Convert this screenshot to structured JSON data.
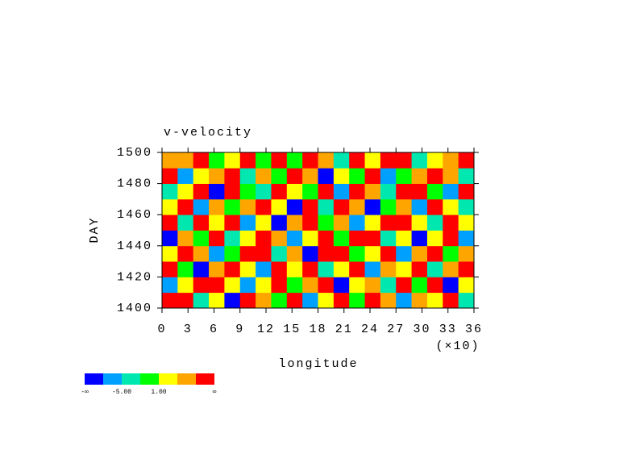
{
  "chart_data": {
    "type": "heatmap",
    "title": "v-velocity",
    "x_label": "longitude",
    "x_multiplier": "(×10)",
    "y_label": "DAY",
    "xlim": [
      0,
      360
    ],
    "xticks": [
      0,
      {
        "value": 30,
        "label": "3"
      },
      {
        "value": 60,
        "label": "6"
      },
      {
        "value": 90,
        "label": "9"
      },
      {
        "value": 120,
        "label": "12"
      },
      {
        "value": 150,
        "label": "15"
      },
      {
        "value": 180,
        "label": "18"
      },
      {
        "value": 210,
        "label": "21"
      },
      {
        "value": 240,
        "label": "24"
      },
      {
        "value": 270,
        "label": "27"
      },
      {
        "value": 300,
        "label": "30"
      },
      {
        "value": 330,
        "label": "33"
      },
      {
        "value": 360,
        "label": "36"
      }
    ],
    "ylim": [
      1400,
      1500
    ],
    "yticks": [
      1400,
      1420,
      1440,
      1460,
      1480,
      1500
    ],
    "x": [
      9,
      27,
      45,
      63,
      81,
      99,
      117,
      135,
      153,
      171,
      189,
      207,
      225,
      243,
      261,
      279,
      297,
      315,
      333,
      351
    ],
    "y": [
      1405,
      1415,
      1425,
      1435,
      1445,
      1455,
      1465,
      1475,
      1485,
      1495
    ],
    "z": [
      [
        7,
        9,
        -3,
        2,
        -9,
        8,
        5,
        0,
        10,
        -6,
        3,
        8,
        -2,
        9,
        4,
        -7,
        6,
        1,
        8,
        -4
      ],
      [
        -6,
        2,
        8,
        10,
        1,
        -8,
        3,
        9,
        -1,
        5,
        8,
        -10,
        2,
        6,
        -3,
        9,
        0,
        7,
        -9,
        3
      ],
      [
        9,
        -1,
        -10,
        4,
        7,
        3,
        -6,
        8,
        2,
        10,
        -4,
        1,
        9,
        -8,
        5,
        2,
        8,
        -5,
        6,
        10
      ],
      [
        1,
        8,
        5,
        -7,
        0,
        9,
        8,
        -3,
        6,
        -9,
        7,
        10,
        -1,
        3,
        9,
        -6,
        4,
        10,
        -2,
        5
      ],
      [
        -9,
        6,
        0,
        9,
        -4,
        2,
        10,
        5,
        -8,
        3,
        9,
        -2,
        7,
        10,
        -5,
        1,
        -9,
        3,
        8,
        -7
      ],
      [
        8,
        -3,
        9,
        1,
        10,
        -7,
        2,
        -9,
        4,
        8,
        0,
        6,
        -6,
        2,
        8,
        10,
        3,
        -4,
        9,
        1
      ],
      [
        3,
        10,
        -6,
        6,
        -2,
        5,
        9,
        1,
        -10,
        7,
        -3,
        9,
        4,
        -9,
        0,
        6,
        -7,
        8,
        2,
        -5
      ],
      [
        -4,
        1,
        8,
        -9,
        7,
        0,
        -5,
        10,
        3,
        -1,
        8,
        -7,
        10,
        5,
        -3,
        8,
        9,
        -1,
        -8,
        7
      ],
      [
        10,
        -8,
        2,
        5,
        9,
        -4,
        6,
        -2,
        9,
        4,
        -10,
        3,
        0,
        8,
        -6,
        -2,
        5,
        10,
        4,
        -3
      ],
      [
        5,
        4,
        10,
        -2,
        3,
        8,
        -1,
        7,
        0,
        9,
        6,
        -5,
        9,
        1,
        7,
        10,
        -4,
        2,
        6,
        9
      ]
    ],
    "levels": [
      -8,
      {
        "value": -5,
        "label": "-5.00"
      },
      -2,
      {
        "value": 1,
        "label": "1.00"
      },
      4,
      7
    ],
    "colorbar_ends": [
      "-∞",
      "∞"
    ],
    "colors": [
      "#0000ff",
      "#00a0ff",
      "#00e8b0",
      "#00ff00",
      "#ffff00",
      "#ffa500",
      "#ff0000"
    ]
  }
}
